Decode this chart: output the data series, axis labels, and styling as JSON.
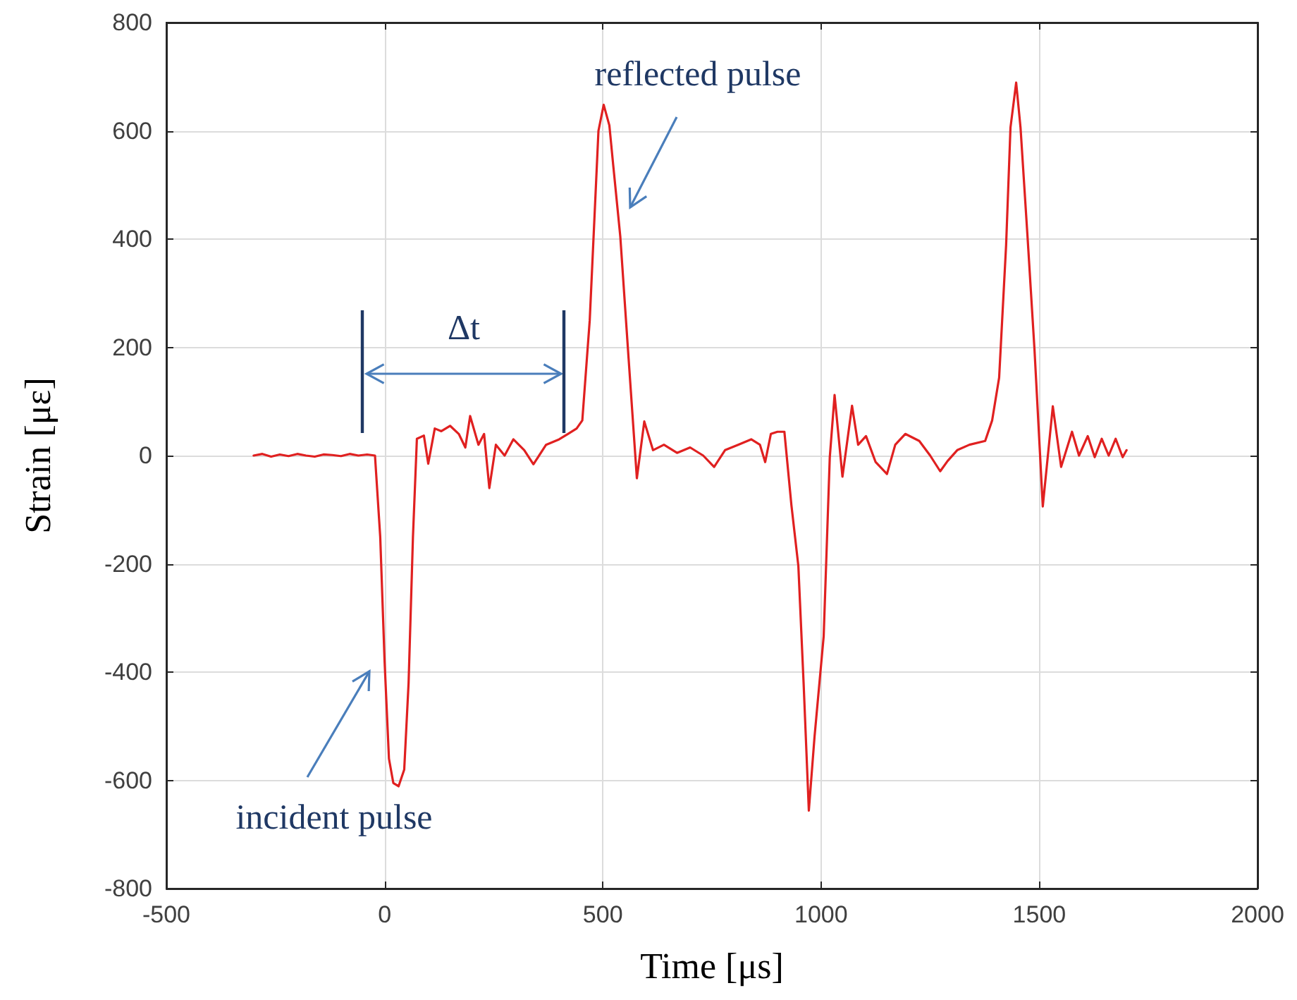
{
  "chart_data": {
    "type": "line",
    "xlabel": "Time [μs]",
    "ylabel": "Strain [με]",
    "xlim": [
      -500,
      2000
    ],
    "xticks": [
      -500,
      0,
      500,
      1000,
      1500,
      2000
    ],
    "ylim": [
      -800,
      800
    ],
    "yticks": [
      -800,
      -600,
      -400,
      -200,
      0,
      200,
      400,
      600,
      800
    ],
    "grid": true,
    "marker": "none",
    "line_style": "solid",
    "series": [
      {
        "color": "#e02020",
        "x": [
          -300,
          -280,
          -260,
          -240,
          -220,
          -200,
          -180,
          -160,
          -140,
          -120,
          -100,
          -80,
          -60,
          -40,
          -22,
          -10,
          0,
          10,
          20,
          32,
          45,
          55,
          65,
          74,
          90,
          100,
          115,
          130,
          150,
          170,
          185,
          196,
          215,
          228,
          240,
          255,
          275,
          295,
          320,
          341,
          370,
          400,
          420,
          440,
          453,
          470,
          490,
          502,
          515,
          524,
          540,
          559,
          578,
          595,
          615,
          640,
          670,
          700,
          730,
          755,
          780,
          810,
          840,
          860,
          872,
          885,
          900,
          916,
          932,
          948,
          960,
          972,
          985,
          1006,
          1020,
          1031,
          1049,
          1071,
          1085,
          1103,
          1125,
          1151,
          1170,
          1193,
          1225,
          1250,
          1273,
          1290,
          1312,
          1340,
          1376,
          1392,
          1408,
          1424,
          1434,
          1447,
          1457,
          1473,
          1489,
          1508,
          1531,
          1550,
          1575,
          1591,
          1611,
          1627,
          1643,
          1659,
          1675,
          1691,
          1700
        ],
        "values": [
          0,
          3,
          -2,
          2,
          -1,
          3,
          0,
          -2,
          2,
          1,
          -1,
          3,
          0,
          2,
          0,
          -150,
          -380,
          -560,
          -605,
          -611,
          -580,
          -420,
          -150,
          31,
          37,
          -15,
          50,
          45,
          55,
          40,
          15,
          73,
          20,
          40,
          -60,
          20,
          0,
          30,
          10,
          -16,
          20,
          30,
          40,
          50,
          65,
          250,
          600,
          648,
          610,
          535,
          405,
          180,
          -42,
          63,
          10,
          20,
          5,
          15,
          0,
          -21,
          10,
          20,
          30,
          20,
          -12,
          40,
          44,
          44,
          -91,
          -204,
          -420,
          -656,
          -520,
          -334,
          -3,
          112,
          -39,
          92,
          20,
          36,
          -12,
          -34,
          20,
          40,
          27,
          0,
          -29,
          -10,
          10,
          20,
          27,
          65,
          144,
          389,
          606,
          689,
          606,
          405,
          196,
          -94,
          91,
          -21,
          44,
          0,
          36,
          -3,
          31,
          0,
          31,
          -3,
          10
        ]
      }
    ],
    "annotations": [
      "incident pulse",
      "reflected pulse",
      "Δt"
    ]
  }
}
